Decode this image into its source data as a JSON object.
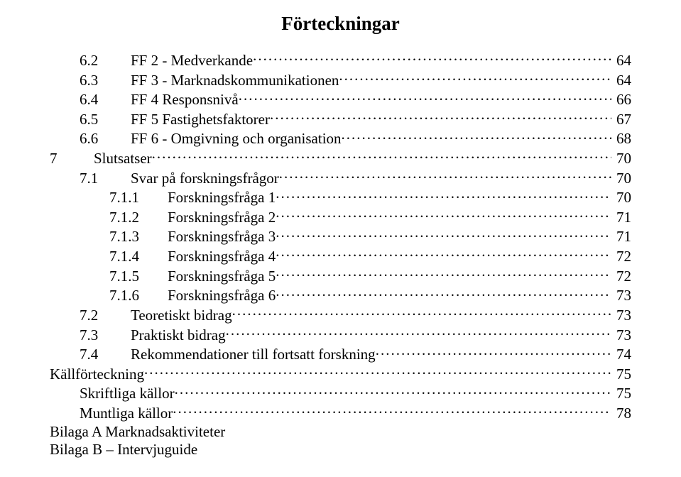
{
  "title": "Förteckningar",
  "entries": [
    {
      "indent": 1,
      "num": "6.2",
      "numClass": "num-gap-2",
      "label": "FF 2 - Medverkande",
      "page": "64"
    },
    {
      "indent": 1,
      "num": "6.3",
      "numClass": "num-gap-2",
      "label": "FF 3 - Marknadskommunikationen",
      "page": "64"
    },
    {
      "indent": 1,
      "num": "6.4",
      "numClass": "num-gap-2",
      "label": "FF 4 Responsnivå",
      "page": "66"
    },
    {
      "indent": 1,
      "num": "6.5",
      "numClass": "num-gap-2",
      "label": "FF 5 Fastighetsfaktorer",
      "page": "67"
    },
    {
      "indent": 1,
      "num": "6.6",
      "numClass": "num-gap-2",
      "label": "FF 6 - Omgivning och organisation",
      "page": "68"
    },
    {
      "indent": 0,
      "num": "7",
      "numClass": "num-gap-1",
      "label": "Slutsatser",
      "page": "70"
    },
    {
      "indent": 1,
      "num": "7.1",
      "numClass": "num-gap-2",
      "label": "Svar på forskningsfrågor",
      "page": "70"
    },
    {
      "indent": 2,
      "num": "7.1.1",
      "numClass": "num-gap-3",
      "label": "Forskningsfråga 1",
      "page": "70"
    },
    {
      "indent": 2,
      "num": "7.1.2",
      "numClass": "num-gap-3",
      "label": "Forskningsfråga 2",
      "page": "71"
    },
    {
      "indent": 2,
      "num": "7.1.3",
      "numClass": "num-gap-3",
      "label": "Forskningsfråga 3",
      "page": "71"
    },
    {
      "indent": 2,
      "num": "7.1.4",
      "numClass": "num-gap-3",
      "label": "Forskningsfråga 4",
      "page": "72"
    },
    {
      "indent": 2,
      "num": "7.1.5",
      "numClass": "num-gap-3",
      "label": "Forskningsfråga 5",
      "page": "72"
    },
    {
      "indent": 2,
      "num": "7.1.6",
      "numClass": "num-gap-3",
      "label": "Forskningsfråga 6",
      "page": "73"
    },
    {
      "indent": 1,
      "num": "7.2",
      "numClass": "num-gap-2",
      "label": "Teoretiskt bidrag",
      "page": "73"
    },
    {
      "indent": 1,
      "num": "7.3",
      "numClass": "num-gap-2",
      "label": "Praktiskt bidrag",
      "page": "73"
    },
    {
      "indent": 1,
      "num": "7.4",
      "numClass": "num-gap-2",
      "label": "Rekommendationer till fortsatt forskning",
      "page": "74"
    },
    {
      "indent": 0,
      "num": "",
      "numClass": "",
      "label": "Källförteckning",
      "page": "75"
    },
    {
      "indent": 1,
      "num": "",
      "numClass": "",
      "label": "Skriftliga källor",
      "page": "75"
    },
    {
      "indent": 1,
      "num": "",
      "numClass": "",
      "label": "Muntliga källor",
      "page": "78"
    },
    {
      "indent": 0,
      "num": "",
      "numClass": "",
      "label": "Bilaga A Marknadsaktiviteter",
      "page": ""
    },
    {
      "indent": 0,
      "num": "",
      "numClass": "",
      "label": "Bilaga B – Intervjuguide",
      "page": ""
    }
  ]
}
